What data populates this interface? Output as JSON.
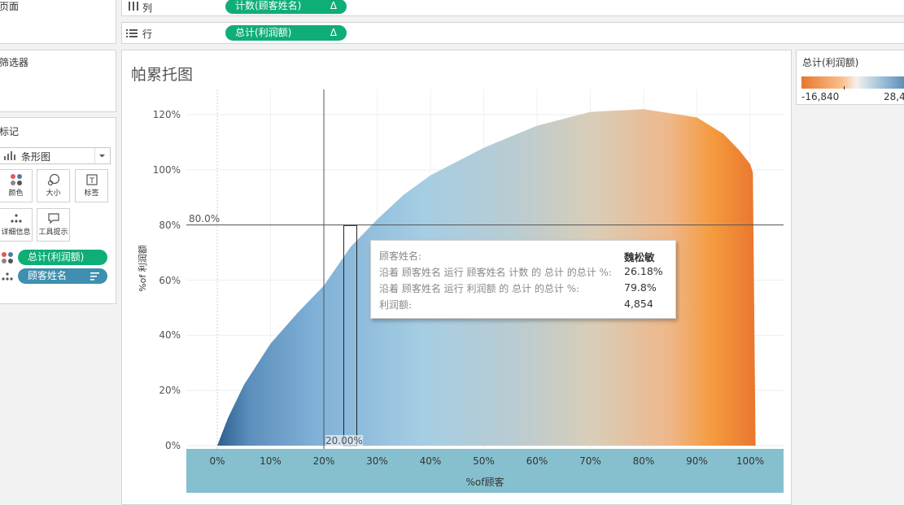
{
  "left_panels": {
    "pages_title": "页面",
    "filters_title": "筛选器",
    "marks_title": "标记",
    "mark_type": "条形图",
    "buttons": [
      {
        "label": "颜色",
        "icon": "color-dots-icon"
      },
      {
        "label": "大小",
        "icon": "size-icon"
      },
      {
        "label": "标签",
        "icon": "label-icon"
      },
      {
        "label": "详细信息",
        "icon": "detail-icon"
      },
      {
        "label": "工具提示",
        "icon": "tooltip-icon"
      }
    ],
    "pills": [
      {
        "label": "总计(利润额)",
        "icon": "color-dots-icon"
      },
      {
        "label": "顾客姓名",
        "icon": "detail-icon"
      }
    ]
  },
  "shelves": {
    "columns_label": "列",
    "columns_pill": "计数(顾客姓名)",
    "rows_label": "行",
    "rows_pill": "总计(利润额)",
    "delta": "Δ"
  },
  "legend": {
    "title": "总计(利润额)",
    "min_label": "-16,840",
    "max_label": "28,4",
    "colors": {
      "low": "#e8772e",
      "mid": "#f6f0e8",
      "high": "#4a7fae"
    }
  },
  "chart_title": "帕累托图",
  "chart_data": {
    "type": "area",
    "title": "帕累托图",
    "xlabel": "%of顾客",
    "ylabel": "%of 利润额",
    "x_ticks": [
      "0%",
      "10%",
      "20%",
      "30%",
      "40%",
      "50%",
      "60%",
      "70%",
      "80%",
      "90%",
      "100%"
    ],
    "y_ticks": [
      "0%",
      "20%",
      "40%",
      "60%",
      "80%",
      "100%",
      "120%"
    ],
    "xlim": [
      0,
      100
    ],
    "ylim": [
      0,
      125
    ],
    "x": [
      0,
      2,
      5,
      10,
      15,
      20,
      25,
      30,
      35,
      40,
      50,
      60,
      70,
      80,
      90,
      95,
      98,
      100,
      100.5,
      101
    ],
    "y": [
      0,
      10,
      22,
      37,
      48,
      58,
      72,
      82,
      91,
      98,
      108,
      116,
      121,
      122,
      119,
      113,
      107,
      102,
      99,
      0
    ],
    "reference_lines": [
      {
        "axis": "y",
        "value": 80,
        "label": "80.0%"
      },
      {
        "axis": "x",
        "value": 20,
        "label": "20.00%"
      }
    ],
    "highlight_x": 26.18,
    "grid": true
  },
  "tooltip": {
    "rows": [
      {
        "label": "顾客姓名:",
        "value": "魏松敏"
      },
      {
        "label": "沿着 顾客姓名 运行 顾客姓名 计数 的 总计 的总计 %:",
        "value": "26.18%"
      },
      {
        "label": "沿着 顾客姓名 运行 利润额 的 总计 的总计 %:",
        "value": "79.8%"
      },
      {
        "label": "利润额:",
        "value": "4,854"
      }
    ]
  }
}
